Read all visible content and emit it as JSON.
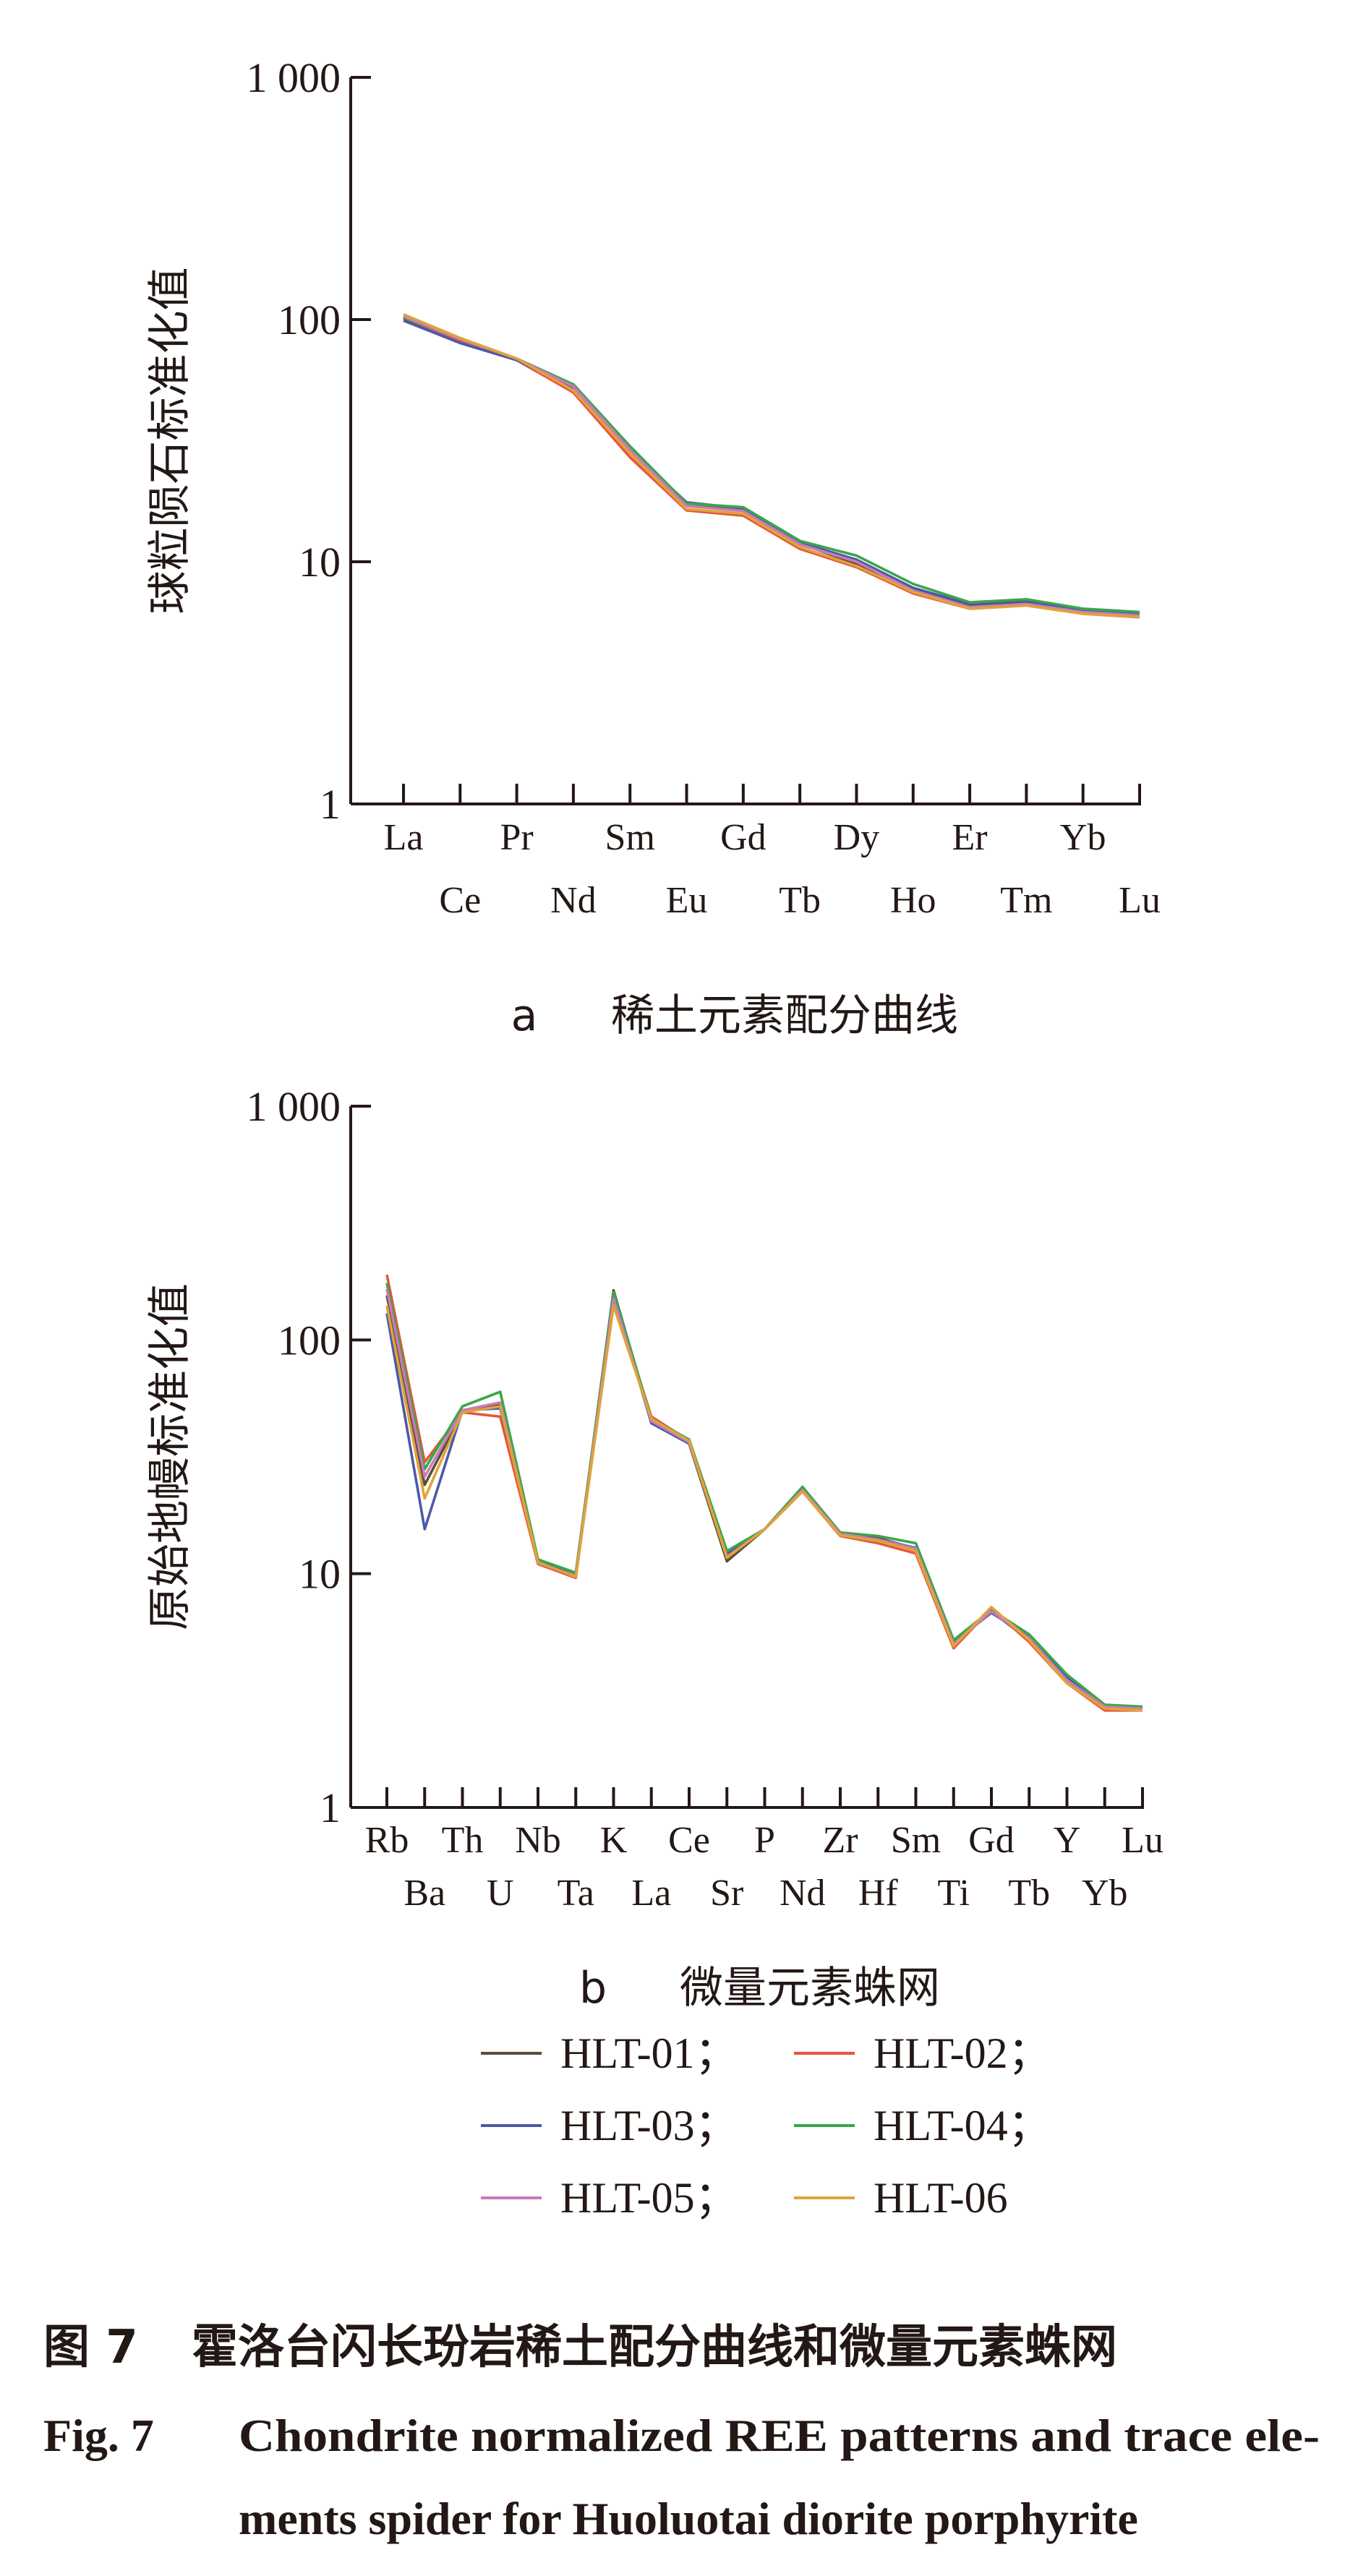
{
  "chart_data": [
    {
      "type": "line",
      "panel": "a",
      "caption": "稀土元素配分曲线",
      "ylabel": "球粒陨石标准化值",
      "xlabel": "",
      "yscale": "log",
      "ylim": [
        1,
        1000
      ],
      "yticks": [
        {
          "value": 1,
          "label": "1"
        },
        {
          "value": 10,
          "label": "10"
        },
        {
          "value": 100,
          "label": "100"
        },
        {
          "value": 1000,
          "label": "1 000"
        }
      ],
      "categories": [
        "La",
        "Ce",
        "Pr",
        "Nd",
        "Sm",
        "Eu",
        "Gd",
        "Tb",
        "Dy",
        "Ho",
        "Er",
        "Tm",
        "Yb",
        "Lu"
      ],
      "series": [
        {
          "name": "HLT-01",
          "values": [
            101,
            81,
            68,
            53,
            29,
            17.2,
            16.3,
            11.9,
            9.8,
            7.7,
            6.6,
            6.8,
            6.2,
            6.1
          ]
        },
        {
          "name": "HLT-02",
          "values": [
            102,
            82,
            68,
            50,
            27,
            16.3,
            15.5,
            11.3,
            9.5,
            7.4,
            6.4,
            6.6,
            6.1,
            5.9
          ]
        },
        {
          "name": "HLT-03",
          "values": [
            99,
            80,
            68,
            52,
            29,
            17.6,
            16.6,
            12.0,
            10.2,
            7.8,
            6.7,
            6.9,
            6.3,
            6.1
          ]
        },
        {
          "name": "HLT-04",
          "values": [
            102,
            83,
            69,
            54,
            30,
            17.4,
            16.8,
            12.2,
            10.6,
            8.1,
            6.8,
            7.0,
            6.4,
            6.2
          ]
        },
        {
          "name": "HLT-05",
          "values": [
            103,
            83,
            69,
            53,
            29,
            17.0,
            16.2,
            11.8,
            10.0,
            7.6,
            6.5,
            6.7,
            6.2,
            6.0
          ]
        },
        {
          "name": "HLT-06",
          "values": [
            105,
            84,
            69,
            51,
            28,
            16.5,
            15.8,
            11.5,
            9.6,
            7.5,
            6.4,
            6.6,
            6.1,
            5.9
          ]
        }
      ]
    },
    {
      "type": "line",
      "panel": "b",
      "caption": "微量元素蛛网",
      "ylabel": "原始地幔标准化值",
      "xlabel": "",
      "yscale": "log",
      "ylim": [
        1,
        1000
      ],
      "yticks": [
        {
          "value": 1,
          "label": "1"
        },
        {
          "value": 10,
          "label": "10"
        },
        {
          "value": 100,
          "label": "100"
        },
        {
          "value": 1000,
          "label": "1 000"
        }
      ],
      "categories": [
        "Rb",
        "Ba",
        "Th",
        "U",
        "Nb",
        "Ta",
        "K",
        "La",
        "Ce",
        "Sr",
        "P",
        "Nd",
        "Zr",
        "Hf",
        "Sm",
        "Ti",
        "Gd",
        "Tb",
        "Y",
        "Yb",
        "Lu"
      ],
      "series": [
        {
          "name": "HLT-01",
          "values": [
            155,
            24,
            49,
            53,
            11.2,
            9.9,
            163,
            45,
            36,
            11.3,
            15.5,
            23.5,
            14.8,
            14.2,
            12.8,
            5.0,
            6.9,
            5.2,
            3.5,
            2.7,
            2.65
          ]
        },
        {
          "name": "HLT-02",
          "values": [
            190,
            30,
            49,
            47,
            11.0,
            9.6,
            150,
            47,
            37,
            12.0,
            15.5,
            22.5,
            14.5,
            13.5,
            12.2,
            4.8,
            7.1,
            5.1,
            3.4,
            2.6,
            2.6
          ]
        },
        {
          "name": "HLT-03",
          "values": [
            130,
            15.5,
            50,
            51,
            11.4,
            10.0,
            155,
            44,
            36,
            12.2,
            15.5,
            23.0,
            14.8,
            14.0,
            12.9,
            5.1,
            6.8,
            5.4,
            3.6,
            2.7,
            2.65
          ]
        },
        {
          "name": "HLT-04",
          "values": [
            175,
            28,
            52,
            60,
            11.5,
            10.1,
            160,
            46,
            37.5,
            12.5,
            15.5,
            23.5,
            15.0,
            14.5,
            13.5,
            5.2,
            7.0,
            5.5,
            3.7,
            2.75,
            2.7
          ]
        },
        {
          "name": "HLT-05",
          "values": [
            165,
            26,
            50,
            54,
            11.1,
            9.8,
            150,
            45,
            36.5,
            11.8,
            15.5,
            22.8,
            14.8,
            14.0,
            12.8,
            5.0,
            6.9,
            5.3,
            3.5,
            2.7,
            2.65
          ]
        },
        {
          "name": "HLT-06",
          "values": [
            140,
            21,
            49,
            52,
            11.2,
            9.7,
            140,
            46,
            37,
            11.7,
            15.5,
            22.5,
            14.6,
            13.8,
            12.5,
            4.9,
            7.2,
            5.2,
            3.4,
            2.65,
            2.6
          ]
        }
      ]
    }
  ],
  "legend": [
    {
      "label": "HLT-01；",
      "color": "#5c4b3c"
    },
    {
      "label": "HLT-02；",
      "color": "#e8553a"
    },
    {
      "label": "HLT-03；",
      "color": "#4a5aa8"
    },
    {
      "label": "HLT-04；",
      "color": "#3aa64a"
    },
    {
      "label": "HLT-05；",
      "color": "#c97ab8"
    },
    {
      "label": "HLT-06",
      "color": "#e0a33a"
    }
  ],
  "caption": {
    "cn_label": "图 7",
    "cn_text": "霍洛台闪长玢岩稀土配分曲线和微量元素蛛网",
    "en_label": "Fig. 7",
    "en_line1": "Chondrite normalized REE patterns and trace ele-",
    "en_line2": "ments spider for Huoluotai diorite porphyrite"
  },
  "subcaption_letters": [
    "a",
    "b"
  ]
}
